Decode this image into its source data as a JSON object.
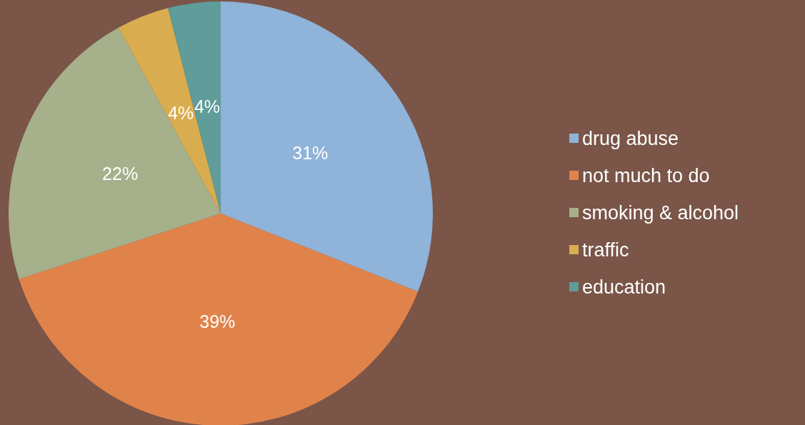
{
  "chart_data": {
    "type": "pie",
    "categories": [
      "drug abuse",
      "not much to do",
      "smoking & alcohol",
      "traffic",
      "education"
    ],
    "values": [
      31,
      39,
      22,
      4,
      4
    ],
    "value_labels": [
      "31%",
      "39%",
      "22%",
      "4%",
      "4%"
    ],
    "colors": [
      "#8fb3d9",
      "#e0834a",
      "#a6b08a",
      "#d9ad4f",
      "#5f9c9a"
    ],
    "legend": "right"
  }
}
